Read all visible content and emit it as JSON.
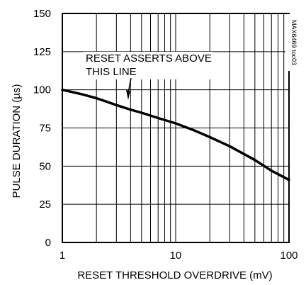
{
  "chart_data": {
    "type": "line",
    "title": "",
    "xlabel": "RESET THRESHOLD OVERDRIVE (mV)",
    "ylabel": "PULSE DURATION (µs)",
    "x_scale": "log",
    "xlim": [
      1,
      100
    ],
    "ylim": [
      0,
      150
    ],
    "x_tick_labels": [
      "1",
      "10",
      "100"
    ],
    "x_ticks": [
      1,
      10,
      100
    ],
    "y_tick_labels": [
      "0",
      "25",
      "50",
      "75",
      "100",
      "125",
      "150"
    ],
    "y_ticks": [
      0,
      25,
      50,
      75,
      100,
      125,
      150
    ],
    "grid": true,
    "legend": "none",
    "series": [
      {
        "x": [
          1,
          1.5,
          2,
          3,
          4,
          5,
          7,
          10,
          15,
          20,
          30,
          50,
          70,
          100
        ],
        "values": [
          100,
          97,
          94.5,
          90,
          87,
          85,
          81.5,
          78,
          73,
          69,
          63,
          54,
          47,
          41
        ]
      }
    ],
    "annotation": {
      "line1": "RESET ASSERTS ABOVE",
      "line2": "THIS LINE"
    },
    "side_label": "MAX6469 toc03"
  }
}
